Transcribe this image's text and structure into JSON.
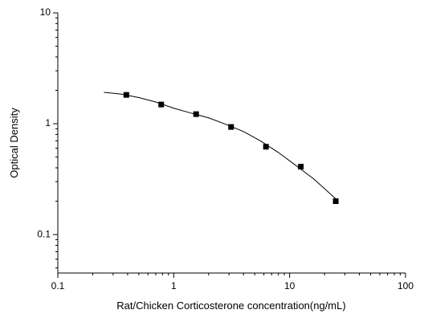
{
  "chart_data": {
    "type": "scatter",
    "x_label": "Rat/Chicken Corticosterone concentration(ng/mL)",
    "y_label": "Optical Density",
    "xlog": true,
    "ylog": true,
    "xlim": [
      0.1,
      100
    ],
    "ylim": [
      0.045,
      10
    ],
    "xticks": [
      0.1,
      1,
      10,
      100
    ],
    "yticks": [
      0.1,
      1,
      10
    ],
    "series": [
      {
        "style": "marker",
        "color": "#000000",
        "x": [
          0.39,
          0.78,
          1.56,
          3.125,
          6.25,
          12.5,
          25
        ],
        "values": [
          1.82,
          1.49,
          1.22,
          0.935,
          0.62,
          0.41,
          0.2
        ]
      },
      {
        "style": "line",
        "color": "#000000",
        "x": [
          0.25,
          0.35,
          0.5,
          0.7,
          1,
          1.4,
          2,
          2.8,
          4,
          5.6,
          8,
          11,
          16,
          20,
          25
        ],
        "values": [
          1.92,
          1.85,
          1.72,
          1.57,
          1.38,
          1.25,
          1.13,
          0.99,
          0.85,
          0.7,
          0.55,
          0.43,
          0.32,
          0.26,
          0.21
        ]
      }
    ]
  }
}
